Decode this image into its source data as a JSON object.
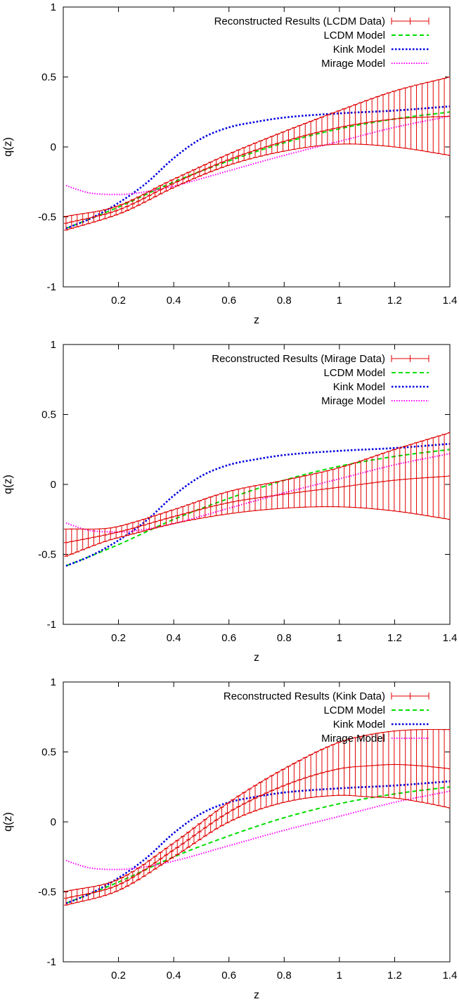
{
  "colors": {
    "data": "#e00000",
    "lcdm": "#00dd00",
    "kink": "#0000e0",
    "mirage": "#ff00ff",
    "frame": "#000000"
  },
  "chart_data": [
    {
      "type": "line",
      "xlabel": "z",
      "ylabel": "q(z)",
      "xlim": [
        0,
        1.4
      ],
      "ylim": [
        -1,
        1
      ],
      "xticks": [
        "0.2",
        "0.4",
        "0.6",
        "0.8",
        "1",
        "1.2",
        "1.4"
      ],
      "yticks": [
        "-1",
        "-0.5",
        "0",
        "0.5",
        "1"
      ],
      "legend_position": "top-right",
      "grid": false,
      "series": [
        {
          "name": "Reconstructed Results (LCDM Data)",
          "style": "errorbar",
          "color": "data",
          "x": [
            0.0,
            0.2,
            0.4,
            0.6,
            0.8,
            1.0,
            1.2,
            1.4
          ],
          "values": [
            -0.55,
            -0.45,
            -0.26,
            -0.09,
            0.04,
            0.14,
            0.2,
            0.22
          ],
          "err": [
            0.05,
            0.03,
            0.03,
            0.04,
            0.07,
            0.12,
            0.2,
            0.28
          ]
        },
        {
          "name": "LCDM Model",
          "style": "dashed",
          "color": "lcdm",
          "x": [
            0.0,
            0.2,
            0.4,
            0.6,
            0.8,
            1.0,
            1.2,
            1.4
          ],
          "values": [
            -0.59,
            -0.43,
            -0.25,
            -0.1,
            0.03,
            0.13,
            0.2,
            0.25
          ]
        },
        {
          "name": "Kink Model",
          "style": "dotted",
          "color": "kink",
          "x": [
            0.0,
            0.1,
            0.2,
            0.3,
            0.4,
            0.5,
            0.6,
            0.7,
            0.8,
            1.0,
            1.2,
            1.4
          ],
          "values": [
            -0.59,
            -0.51,
            -0.4,
            -0.26,
            -0.08,
            0.06,
            0.14,
            0.18,
            0.21,
            0.24,
            0.26,
            0.29
          ]
        },
        {
          "name": "Mirage Model",
          "style": "dotted-fine",
          "color": "mirage",
          "x": [
            0.0,
            0.1,
            0.2,
            0.3,
            0.4,
            0.6,
            0.8,
            1.0,
            1.2,
            1.4
          ],
          "values": [
            -0.27,
            -0.33,
            -0.34,
            -0.32,
            -0.28,
            -0.17,
            -0.06,
            0.04,
            0.14,
            0.22
          ]
        }
      ]
    },
    {
      "type": "line",
      "xlabel": "z",
      "ylabel": "q(z)",
      "xlim": [
        0,
        1.4
      ],
      "ylim": [
        -1,
        1
      ],
      "xticks": [
        "0.2",
        "0.4",
        "0.6",
        "0.8",
        "1",
        "1.2",
        "1.4"
      ],
      "yticks": [
        "-1",
        "-0.5",
        "0",
        "0.5",
        "1"
      ],
      "legend_position": "top-right",
      "grid": false,
      "series": [
        {
          "name": "Reconstructed Results (Mirage Data)",
          "style": "errorbar",
          "color": "data",
          "x": [
            0.0,
            0.2,
            0.4,
            0.6,
            0.8,
            1.0,
            1.2,
            1.4
          ],
          "values": [
            -0.42,
            -0.34,
            -0.23,
            -0.13,
            -0.07,
            -0.02,
            0.03,
            0.06
          ],
          "err": [
            0.1,
            0.04,
            0.05,
            0.08,
            0.1,
            0.14,
            0.22,
            0.31
          ]
        },
        {
          "name": "LCDM Model",
          "style": "dashed",
          "color": "lcdm",
          "x": [
            0.0,
            0.2,
            0.4,
            0.6,
            0.8,
            1.0,
            1.2,
            1.4
          ],
          "values": [
            -0.59,
            -0.43,
            -0.25,
            -0.1,
            0.03,
            0.13,
            0.2,
            0.25
          ]
        },
        {
          "name": "Kink Model",
          "style": "dotted",
          "color": "kink",
          "x": [
            0.0,
            0.1,
            0.2,
            0.3,
            0.4,
            0.5,
            0.6,
            0.7,
            0.8,
            1.0,
            1.2,
            1.4
          ],
          "values": [
            -0.59,
            -0.51,
            -0.4,
            -0.26,
            -0.08,
            0.06,
            0.14,
            0.18,
            0.21,
            0.24,
            0.26,
            0.29
          ]
        },
        {
          "name": "Mirage Model",
          "style": "dotted-fine",
          "color": "mirage",
          "x": [
            0.0,
            0.1,
            0.2,
            0.3,
            0.4,
            0.6,
            0.8,
            1.0,
            1.2,
            1.4
          ],
          "values": [
            -0.27,
            -0.33,
            -0.34,
            -0.32,
            -0.28,
            -0.17,
            -0.06,
            0.04,
            0.14,
            0.22
          ]
        }
      ]
    },
    {
      "type": "line",
      "xlabel": "z",
      "ylabel": "q(z)",
      "xlim": [
        0,
        1.4
      ],
      "ylim": [
        -1,
        1
      ],
      "xticks": [
        "0.2",
        "0.4",
        "0.6",
        "0.8",
        "1",
        "1.2",
        "1.4"
      ],
      "yticks": [
        "-1",
        "-0.5",
        "0",
        "0.5",
        "1"
      ],
      "legend_position": "top-right",
      "grid": false,
      "series": [
        {
          "name": "Reconstructed Results (Kink Data)",
          "style": "errorbar",
          "color": "data",
          "x": [
            0.0,
            0.2,
            0.4,
            0.6,
            0.8,
            1.0,
            1.1,
            1.2,
            1.3,
            1.4
          ],
          "values": [
            -0.55,
            -0.45,
            -0.2,
            0.07,
            0.26,
            0.38,
            0.4,
            0.41,
            0.4,
            0.38
          ],
          "err": [
            0.05,
            0.04,
            0.05,
            0.07,
            0.12,
            0.19,
            0.22,
            0.24,
            0.26,
            0.28
          ]
        },
        {
          "name": "LCDM Model",
          "style": "dashed",
          "color": "lcdm",
          "x": [
            0.0,
            0.2,
            0.4,
            0.6,
            0.8,
            1.0,
            1.2,
            1.4
          ],
          "values": [
            -0.59,
            -0.43,
            -0.25,
            -0.1,
            0.03,
            0.13,
            0.2,
            0.25
          ]
        },
        {
          "name": "Kink Model",
          "style": "dotted",
          "color": "kink",
          "x": [
            0.0,
            0.1,
            0.2,
            0.3,
            0.4,
            0.5,
            0.6,
            0.7,
            0.8,
            1.0,
            1.2,
            1.4
          ],
          "values": [
            -0.59,
            -0.51,
            -0.4,
            -0.26,
            -0.08,
            0.06,
            0.14,
            0.18,
            0.21,
            0.24,
            0.26,
            0.29
          ]
        },
        {
          "name": "Mirage Model",
          "style": "dotted-fine",
          "color": "mirage",
          "x": [
            0.0,
            0.1,
            0.2,
            0.3,
            0.4,
            0.6,
            0.8,
            1.0,
            1.2,
            1.4
          ],
          "values": [
            -0.27,
            -0.33,
            -0.34,
            -0.32,
            -0.28,
            -0.17,
            -0.06,
            0.04,
            0.14,
            0.22
          ]
        }
      ]
    }
  ]
}
